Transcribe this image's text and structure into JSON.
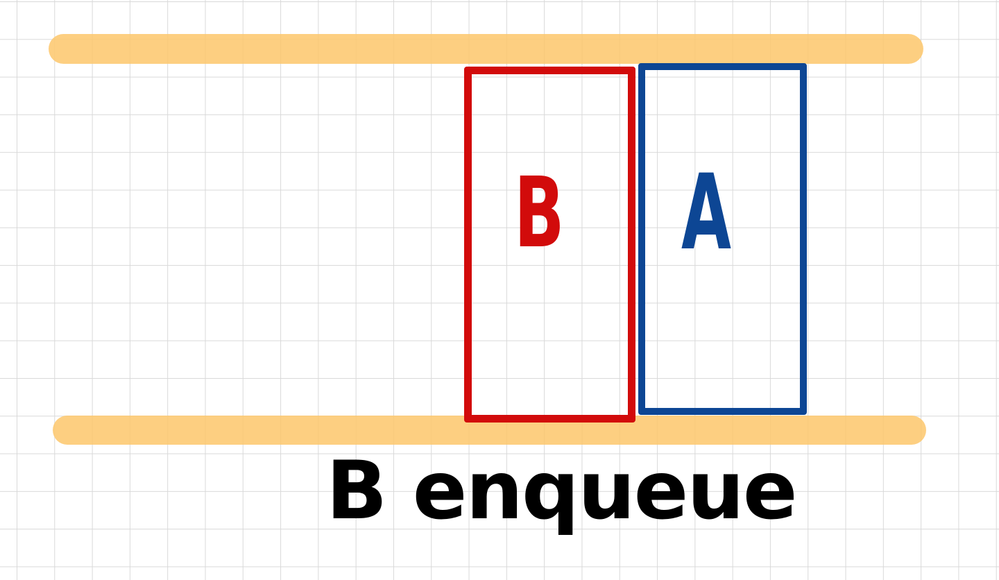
{
  "diagram": {
    "element_b_label": "B",
    "element_a_label": "A",
    "caption": "B enqueue",
    "colors": {
      "rail": "#fdc76b",
      "element_b": "#d20b0b",
      "element_a": "#0d4694",
      "caption": "#000000"
    }
  }
}
